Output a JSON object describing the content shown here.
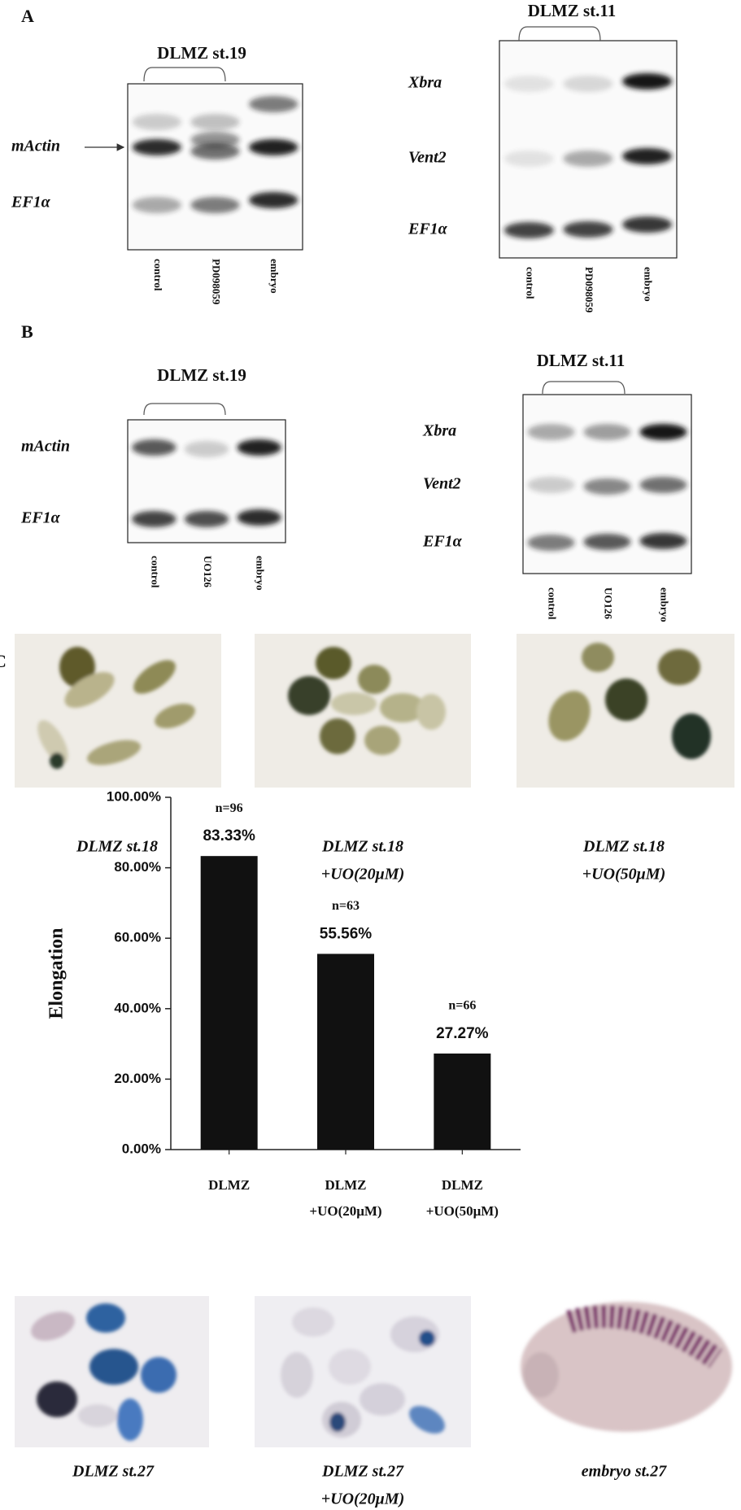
{
  "panel_a": {
    "label": "A",
    "blot_left": {
      "title": "DLMZ st.19",
      "rows": [
        "mActin",
        "EF1α"
      ],
      "lanes": [
        "control",
        "PD098059",
        "embryo"
      ]
    },
    "blot_right": {
      "title": "DLMZ st.11",
      "rows": [
        "Xbra",
        "Vent2",
        "EF1α"
      ],
      "lanes": [
        "control",
        "PD098059",
        "embryo"
      ]
    }
  },
  "panel_b": {
    "label": "B",
    "blot_left": {
      "title": "DLMZ st.19",
      "rows": [
        "mActin",
        "EF1α"
      ],
      "lanes": [
        "control",
        "UO126",
        "embryo"
      ]
    },
    "blot_right": {
      "title": "DLMZ st.11",
      "rows": [
        "Xbra",
        "Vent2",
        "EF1α"
      ],
      "lanes": [
        "control",
        "UO126",
        "embryo"
      ]
    }
  },
  "panel_c": {
    "label": "C",
    "photos_top": [
      [
        "DLMZ st.18"
      ],
      [
        "DLMZ st.18",
        "+UO(20μM)"
      ],
      [
        "DLMZ st.18",
        "+UO(50μM)"
      ]
    ],
    "photos_bottom": [
      [
        "DLMZ st.27"
      ],
      [
        "DLMZ st.27",
        "+UO(20μM)"
      ],
      [
        "embryo st.27"
      ]
    ]
  },
  "chart_data": {
    "type": "bar",
    "y_label": "Elongation",
    "categories": [
      [
        "DLMZ"
      ],
      [
        "DLMZ",
        "+UO(20μM)"
      ],
      [
        "DLMZ",
        "+UO(50μM)"
      ]
    ],
    "values": [
      83.33,
      55.56,
      27.27
    ],
    "value_labels": [
      "83.33%",
      "55.56%",
      "27.27%"
    ],
    "n_labels": [
      "n=96",
      "n=63",
      "n=66"
    ],
    "color": "#111111",
    "ylim": [
      0,
      100
    ],
    "yticks": [
      {
        "value": 0,
        "label": "0.00%"
      },
      {
        "value": 20,
        "label": "20.00%"
      },
      {
        "value": 40,
        "label": "40.00%"
      },
      {
        "value": 60,
        "label": "60.00%"
      },
      {
        "value": 80,
        "label": "80.00%"
      },
      {
        "value": 100,
        "label": "100.00%"
      }
    ],
    "grid": false
  }
}
